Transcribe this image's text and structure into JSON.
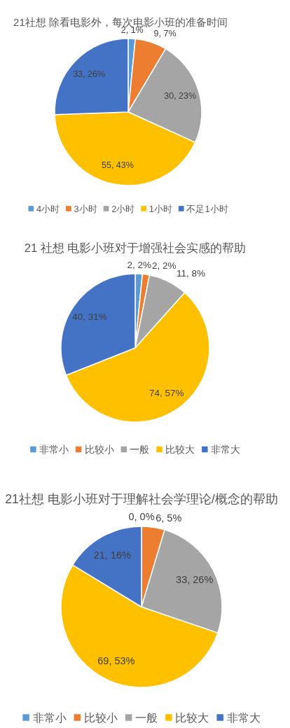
{
  "chart_data": [
    {
      "type": "pie",
      "title": "21社想 除看电影外，每次电影小班的准备时间",
      "categories": [
        "4小时",
        "3小时",
        "2小时",
        "1小时",
        "不足1小时"
      ],
      "values": [
        2,
        9,
        30,
        55,
        33
      ],
      "colors": [
        "#5b9bd5",
        "#ed7d31",
        "#a5a5a5",
        "#ffc000",
        "#4472c4"
      ],
      "value_labels": [
        "2, 1%",
        "9, 7%",
        "30, 23%",
        "55, 43%",
        "33, 26%"
      ],
      "legend": "bottom"
    },
    {
      "type": "pie",
      "title": "21 社想 电影小班对于增强社会实感的帮助",
      "categories": [
        "非常小",
        "比较小",
        "一般",
        "比较大",
        "非常大"
      ],
      "values": [
        2,
        2,
        11,
        74,
        40
      ],
      "colors": [
        "#5b9bd5",
        "#ed7d31",
        "#a5a5a5",
        "#ffc000",
        "#4472c4"
      ],
      "value_labels": [
        "2, 2%",
        "2, 2%",
        "11, 8%",
        "74, 57%",
        "40, 31%"
      ],
      "legend": "bottom"
    },
    {
      "type": "pie",
      "title": "21社想 电影小班对于理解社会学理论/概念的帮助",
      "categories": [
        "非常小",
        "比较小",
        "一般",
        "比较大",
        "非常大"
      ],
      "values": [
        0,
        6,
        33,
        69,
        21
      ],
      "colors": [
        "#5b9bd5",
        "#ed7d31",
        "#a5a5a5",
        "#ffc000",
        "#4472c4"
      ],
      "value_labels": [
        "0, 0%",
        "6, 5%",
        "33, 26%",
        "69, 53%",
        "21, 16%"
      ],
      "legend": "bottom"
    }
  ]
}
